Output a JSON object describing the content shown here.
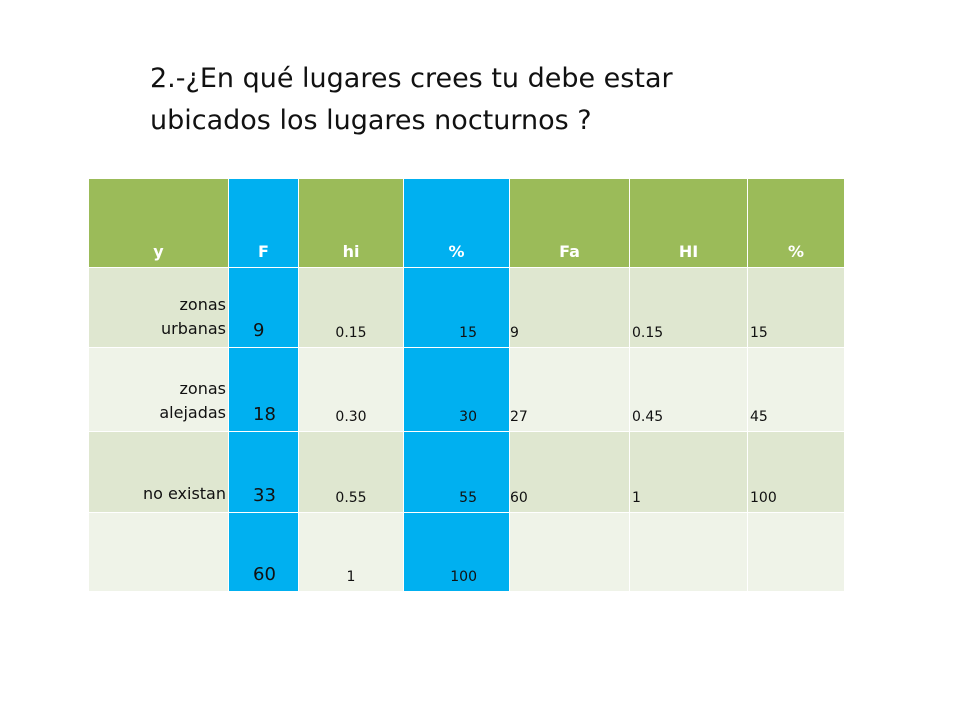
{
  "title": {
    "line1": "2.-¿En qué lugares crees tu debe estar",
    "line2": "ubicados los lugares nocturnos ?"
  },
  "table": {
    "headers": [
      "y",
      "F",
      "hi",
      "%",
      "Fa",
      "HI",
      "%"
    ],
    "rows": [
      {
        "y_line1": "zonas",
        "y_line2": "urbanas",
        "F": "9",
        "hi": "0.15",
        "pct": "15",
        "Fa": "9",
        "HI": "0.15",
        "pct2": "15"
      },
      {
        "y_line1": "zonas",
        "y_line2": "alejadas",
        "F": "18",
        "hi": "0.30",
        "pct": "30",
        "Fa": "27",
        "HI": "0.45",
        "pct2": "45"
      },
      {
        "y_line1": "",
        "y_line2": "no existan",
        "F": "33",
        "hi": "0.55",
        "pct": "55",
        "Fa": "60",
        "HI": "1",
        "pct2": "100"
      },
      {
        "y_line1": "",
        "y_line2": "",
        "F": "60",
        "hi": "1",
        "pct": "100",
        "Fa": "",
        "HI": "",
        "pct2": ""
      }
    ]
  },
  "colors": {
    "header_green": "#9bbb59",
    "column_blue": "#00b0f0",
    "row_dark": "#dfe7d0",
    "row_light": "#eff3e8"
  }
}
